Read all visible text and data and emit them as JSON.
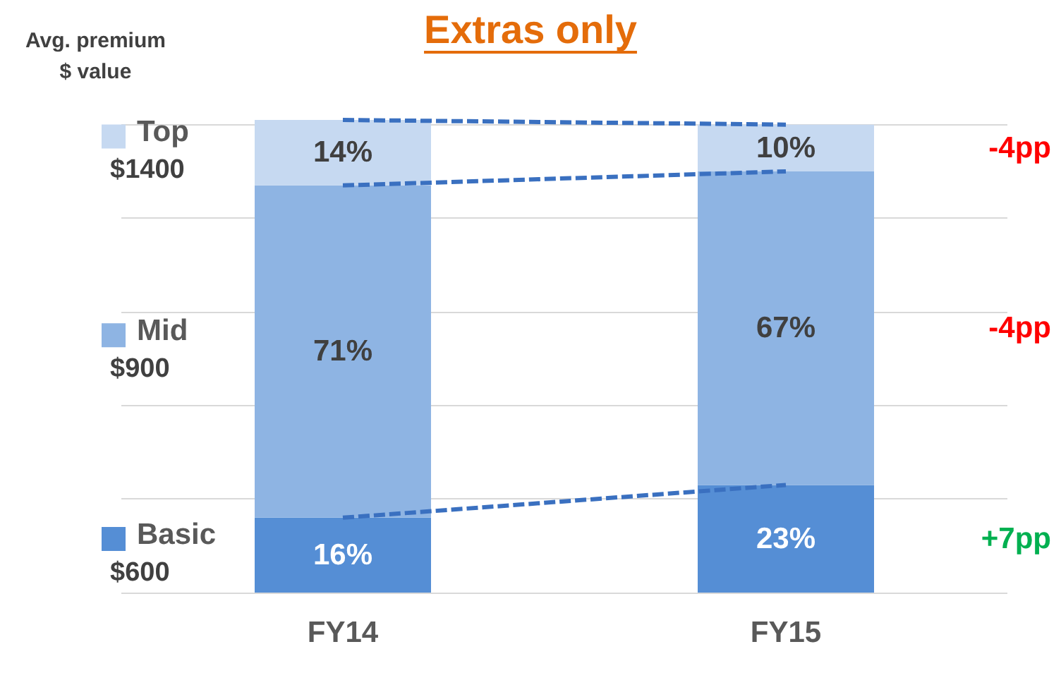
{
  "chart_data": {
    "type": "bar",
    "title": "Extras only",
    "ylabel": "Avg. premium\n$ value",
    "categories": [
      "FY14",
      "FY15"
    ],
    "stacked": true,
    "series": [
      {
        "name": "Basic $600",
        "color": "#558ed5",
        "values": [
          16,
          23
        ],
        "value_labels": [
          "16%",
          "23%"
        ]
      },
      {
        "name": "Mid $900",
        "color": "#8eb4e3",
        "values": [
          71,
          67
        ],
        "value_labels": [
          "71%",
          "67%"
        ]
      },
      {
        "name": "Top $1400",
        "color": "#c6d9f1",
        "values": [
          14,
          10
        ],
        "value_labels": [
          "14%",
          "10%"
        ]
      },
      {
        "type": "line",
        "color": "#3a70c0",
        "line_style": "dashed",
        "marker": "none",
        "values": [
          16,
          23
        ]
      },
      {
        "type": "line",
        "color": "#3a70c0",
        "line_style": "dashed",
        "marker": "none",
        "values": [
          87,
          90
        ]
      },
      {
        "type": "line",
        "color": "#3a70c0",
        "line_style": "dashed",
        "marker": "none",
        "values": [
          101,
          100
        ]
      }
    ],
    "ylim": [
      0,
      101
    ],
    "yticks": [
      {
        "value": 0,
        "label": null
      },
      {
        "value": 20,
        "label": null
      },
      {
        "value": 40,
        "label": null
      },
      {
        "value": 60,
        "label": null
      },
      {
        "value": 80,
        "label": null
      },
      {
        "value": 100,
        "label": null
      }
    ],
    "tick_labels": "x",
    "grid": "y",
    "legend": "left",
    "annotations": [
      "-4pp",
      "-4pp",
      "+7pp"
    ]
  }
}
